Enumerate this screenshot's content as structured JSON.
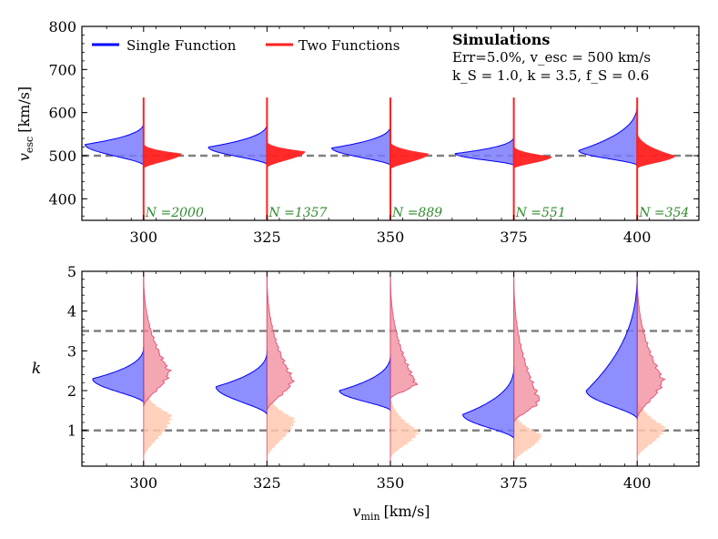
{
  "chart_data": [
    {
      "type": "violin",
      "ylabel": "v_esc [km/s]",
      "ylim": [
        350,
        800
      ],
      "yticks": [
        400,
        500,
        600,
        700,
        800
      ],
      "xlim": [
        287.5,
        412.5
      ],
      "xticks": [
        300,
        325,
        350,
        375,
        400
      ],
      "grid": false,
      "legend_position": "top-left",
      "legend": [
        {
          "name": "Single Function",
          "color": "#0000ff"
        },
        {
          "name": "Two Functions",
          "color": "#ff0000"
        }
      ],
      "annotation": {
        "title": "Simulations",
        "line1": "Err=5.0%, v_esc = 500 km/s",
        "line2": "k_S = 1.0, k = 3.5, f_S = 0.6"
      },
      "reference_lines": [
        500
      ],
      "violins": [
        {
          "x": 300,
          "N_label": "N =2000",
          "single": {
            "peak": 526,
            "low": 478,
            "high": 577,
            "tail": 630
          },
          "two": {
            "peak": 505,
            "low": 470,
            "high": 530,
            "tail": 635
          }
        },
        {
          "x": 325,
          "N_label": "N =1357",
          "single": {
            "peak": 520,
            "low": 480,
            "high": 575,
            "tail": 630
          },
          "two": {
            "peak": 510,
            "low": 472,
            "high": 535,
            "tail": 635
          }
        },
        {
          "x": 350,
          "N_label": "N =889",
          "single": {
            "peak": 518,
            "low": 478,
            "high": 570,
            "tail": 630
          },
          "two": {
            "peak": 505,
            "low": 468,
            "high": 535,
            "tail": 635
          }
        },
        {
          "x": 375,
          "N_label": "N =551",
          "single": {
            "peak": 505,
            "low": 478,
            "high": 545,
            "tail": 630
          },
          "two": {
            "peak": 498,
            "low": 470,
            "high": 525,
            "tail": 635
          }
        },
        {
          "x": 400,
          "N_label": "N =354",
          "single": {
            "peak": 512,
            "low": 478,
            "high": 620,
            "tail": 635
          },
          "two": {
            "peak": 500,
            "low": 470,
            "high": 560,
            "tail": 635
          }
        }
      ]
    },
    {
      "type": "violin",
      "xlabel": "v_min [km/s]",
      "ylabel": "k",
      "ylim": [
        0.1,
        5
      ],
      "yticks": [
        1,
        2,
        3,
        4,
        5
      ],
      "xlim": [
        287.5,
        412.5
      ],
      "xticks": [
        300,
        325,
        350,
        375,
        400
      ],
      "grid": false,
      "reference_lines": [
        1,
        3.5
      ],
      "violins": [
        {
          "x": 300,
          "single": {
            "peak": 2.3,
            "low": 1.7,
            "high": 3.1
          },
          "two": {
            "peak": 2.5,
            "low": 1.6,
            "high": 5.0
          },
          "small": {
            "peak": 1.4,
            "low": 0.3,
            "high": 2.2
          }
        },
        {
          "x": 325,
          "single": {
            "peak": 2.1,
            "low": 1.4,
            "high": 3.0
          },
          "two": {
            "peak": 2.3,
            "low": 1.5,
            "high": 5.0
          },
          "small": {
            "peak": 1.3,
            "low": 0.3,
            "high": 2.1
          }
        },
        {
          "x": 350,
          "single": {
            "peak": 2.0,
            "low": 1.5,
            "high": 2.9
          },
          "two": {
            "peak": 2.2,
            "low": 1.8,
            "high": 5.0
          },
          "small": {
            "peak": 1.0,
            "low": 0.3,
            "high": 2.0
          }
        },
        {
          "x": 375,
          "single": {
            "peak": 1.4,
            "low": 0.8,
            "high": 2.6
          },
          "two": {
            "peak": 1.8,
            "low": 1.2,
            "high": 5.0
          },
          "small": {
            "peak": 0.9,
            "low": 0.2,
            "high": 1.6
          }
        },
        {
          "x": 400,
          "single": {
            "peak": 2.0,
            "low": 1.3,
            "high": 5.0
          },
          "two": {
            "peak": 2.3,
            "low": 1.3,
            "high": 5.0
          },
          "small": {
            "peak": 1.1,
            "low": 0.3,
            "high": 2.0
          }
        }
      ]
    }
  ],
  "colors": {
    "single_fill": "#7a7aff",
    "single_edge": "#0000ff",
    "two_fill": "#ff2020",
    "two_fill_light": "#f08a9a",
    "small_fill": "#ffc9b0",
    "n_label": "#2e8b2e",
    "ref_line": "#808080"
  },
  "labels": {
    "top_ylabel_main": "v",
    "top_ylabel_sub": "esc",
    "top_ylabel_unit": "[km/s]",
    "bottom_ylabel": "k",
    "xlabel_main": "v",
    "xlabel_sub": "min",
    "xlabel_unit": "[km/s]",
    "legend_single": "Single Function",
    "legend_two": "Two Functions",
    "ann_title": "Simulations",
    "ann_line1": "Err=5.0%, v_esc = 500 km/s",
    "ann_line2": "k_S = 1.0, k = 3.5, f_S = 0.6"
  }
}
